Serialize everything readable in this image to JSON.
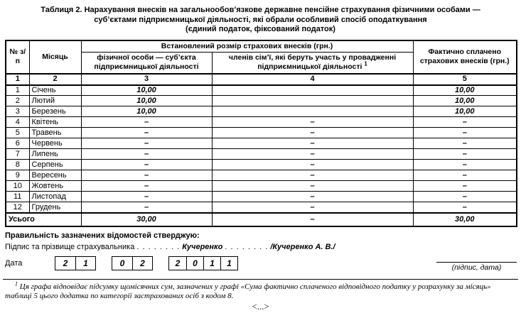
{
  "title": {
    "line1": "Таблиця 2. Нарахування внесків на загальнообов’язкове державне пенсійне страхування фізичними особами —",
    "line2": "суб’єктами підприємницької діяльності, які обрали особливий спосіб оподаткування",
    "line3": "(єдиний податок, фіксований податок)"
  },
  "table": {
    "headers": {
      "col_num": "№ з/п",
      "col_month": "Місяць",
      "group_established": "Встановлений розмір страхових внесків (грн.)",
      "col_entrepreneur": "фізичної особи — суб’єкта підприємницької діяльності",
      "col_family": "членів сім’ї, які беруть участь у провадженні підприємницької діяльності",
      "col_family_footnote_mark": "1",
      "col_paid": "Фактично сплачено страхових внесків (грн.)",
      "col_indices": [
        "1",
        "2",
        "3",
        "4",
        "5"
      ]
    },
    "rows": [
      {
        "num": "1",
        "month": "Січень",
        "entrepreneur": "10,00",
        "family": "",
        "paid": "10,00"
      },
      {
        "num": "2",
        "month": "Лютий",
        "entrepreneur": "10,00",
        "family": "",
        "paid": "10,00"
      },
      {
        "num": "3",
        "month": "Березень",
        "entrepreneur": "10,00",
        "family": "",
        "paid": "10,00"
      },
      {
        "num": "4",
        "month": "Квітень",
        "entrepreneur": "–",
        "family": "–",
        "paid": "–"
      },
      {
        "num": "5",
        "month": "Травень",
        "entrepreneur": "–",
        "family": "–",
        "paid": "–"
      },
      {
        "num": "6",
        "month": "Червень",
        "entrepreneur": "–",
        "family": "–",
        "paid": "–"
      },
      {
        "num": "7",
        "month": "Липень",
        "entrepreneur": "–",
        "family": "–",
        "paid": "–"
      },
      {
        "num": "8",
        "month": "Серпень",
        "entrepreneur": "–",
        "family": "–",
        "paid": "–"
      },
      {
        "num": "9",
        "month": "Вересень",
        "entrepreneur": "–",
        "family": "–",
        "paid": "–"
      },
      {
        "num": "10",
        "month": "Жовтень",
        "entrepreneur": "–",
        "family": "–",
        "paid": "–"
      },
      {
        "num": "11",
        "month": "Листопад",
        "entrepreneur": "–",
        "family": "–",
        "paid": "–"
      },
      {
        "num": "12",
        "month": "Грудень",
        "entrepreneur": "–",
        "family": "–",
        "paid": "–"
      }
    ],
    "total": {
      "label": "Усього",
      "entrepreneur": "30,00",
      "family": "–",
      "paid": "30,00"
    }
  },
  "confirmation": {
    "statement": "Правильність зазначених відомостей стверджую:",
    "signature_label": "Підпис та прізвище страхувальника",
    "dots_left": ". . . . . . . .",
    "signature_name": "Кучеренко",
    "dots_right": ". . . . . . . .",
    "signature_full": "/Кучеренко А. В./",
    "date_label": "Дата",
    "date_day": [
      "2",
      "1"
    ],
    "date_month": [
      "0",
      "2"
    ],
    "date_year": [
      "2",
      "0",
      "1",
      "1"
    ],
    "signature_caption": "(підпис, дата)"
  },
  "footnote": {
    "mark": "1",
    "text": "Ця графа відповідає підсумку щомісячних сум, зазначених у графі «Сума фактично сплаченого відповідного податку у розрахунку за місяць» таблиці 5 цього додатка по категорії застрахованих осіб з кодом 8."
  },
  "ellipsis": "<...>"
}
